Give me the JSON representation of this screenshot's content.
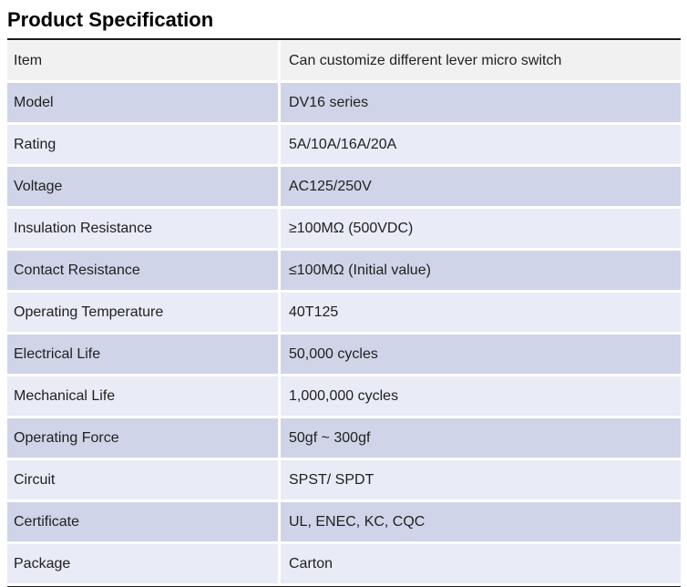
{
  "page": {
    "title": "Product Specification"
  },
  "table": {
    "rows": [
      {
        "label": "Item",
        "value": "Can customize different lever micro switch"
      },
      {
        "label": "Model",
        "value": "DV16 series"
      },
      {
        "label": "Rating",
        "value": "5A/10A/16A/20A"
      },
      {
        "label": "Voltage",
        "value": "AC125/250V"
      },
      {
        "label": "Insulation Resistance",
        "value": "≥100MΩ (500VDC)"
      },
      {
        "label": "Contact Resistance",
        "value": "≤100MΩ (Initial value)"
      },
      {
        "label": "Operating Temperature",
        "value": "40T125"
      },
      {
        "label": "Electrical Life",
        "value": "50,000 cycles"
      },
      {
        "label": "Mechanical Life",
        "value": "1,000,000 cycles"
      },
      {
        "label": "Operating Force",
        "value": "50gf ~ 300gf"
      },
      {
        "label": "Circuit",
        "value": "SPST/ SPDT"
      },
      {
        "label": "Certificate",
        "value": "UL, ENEC, KC, CQC"
      },
      {
        "label": "Package",
        "value": "Carton"
      }
    ],
    "colors": {
      "first_row_bg": "#f1f1f2",
      "dark_row_bg": "#d0d4e8",
      "light_row_bg": "#e9ebf6",
      "border": "#1c1c1c",
      "text": "#1f1f1f"
    }
  }
}
